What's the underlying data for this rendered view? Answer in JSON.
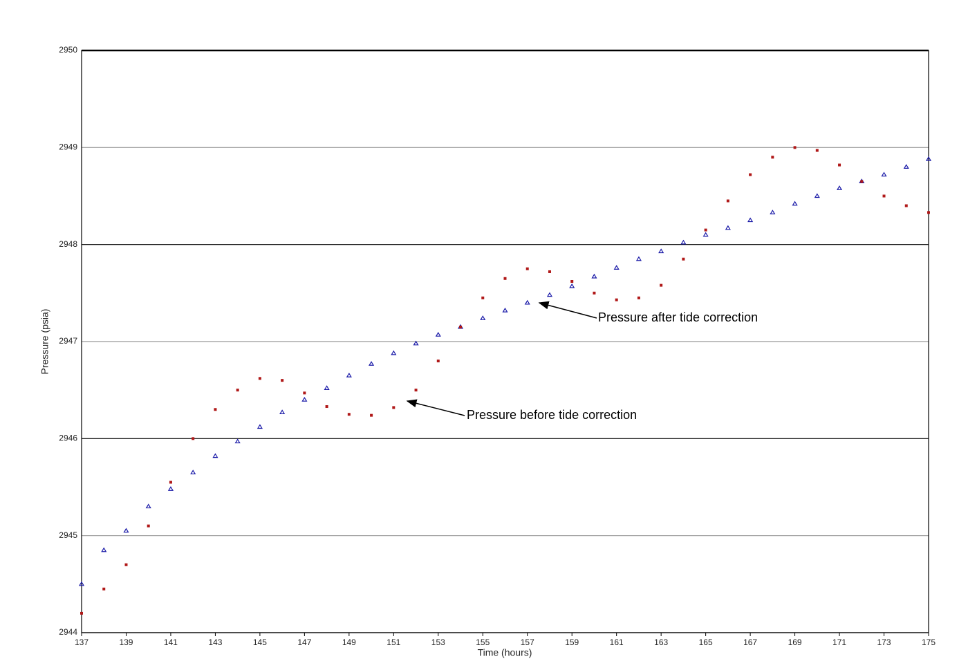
{
  "chart_data": {
    "type": "scatter",
    "x_label": "Time (hours)",
    "y_label": "Pressure (psia)",
    "x": [
      137,
      138,
      139,
      140,
      141,
      142,
      143,
      144,
      145,
      146,
      147,
      148,
      149,
      150,
      151,
      152,
      153,
      154,
      155,
      156,
      157,
      158,
      159,
      160,
      161,
      162,
      163,
      164,
      165,
      166,
      167,
      168,
      169,
      170,
      171,
      172,
      173,
      174,
      175
    ],
    "series": [
      {
        "color": "#1a1aa8",
        "marker": "triangle",
        "values": [
          2944.5,
          2944.85,
          2945.05,
          2945.3,
          2945.48,
          2945.65,
          2945.82,
          2945.97,
          2946.12,
          2946.27,
          2946.4,
          2946.52,
          2946.65,
          2946.77,
          2946.88,
          2946.98,
          2947.07,
          2947.15,
          2947.24,
          2947.32,
          2947.4,
          2947.48,
          2947.57,
          2947.67,
          2947.76,
          2947.85,
          2947.93,
          2948.02,
          2948.1,
          2948.17,
          2948.25,
          2948.33,
          2948.42,
          2948.5,
          2948.58,
          2948.65,
          2948.72,
          2948.8,
          2948.88
        ]
      },
      {
        "color": "#b01818",
        "marker": "square",
        "values": [
          2944.2,
          2944.45,
          2944.7,
          2945.1,
          2945.55,
          2946.0,
          2946.3,
          2946.5,
          2946.62,
          2946.6,
          2946.47,
          2946.33,
          2946.25,
          2946.24,
          2946.32,
          2946.5,
          2946.8,
          2947.15,
          2947.45,
          2947.65,
          2947.75,
          2947.72,
          2947.62,
          2947.5,
          2947.43,
          2947.45,
          2947.58,
          2947.85,
          2948.15,
          2948.45,
          2948.72,
          2948.9,
          2949.0,
          2948.97,
          2948.82,
          2948.65,
          2948.5,
          2948.4,
          2948.33
        ]
      }
    ],
    "annotations": [
      "Pressure after tide correction",
      "Pressure before tide correction"
    ],
    "xlim": [
      137,
      175
    ],
    "xticks": [
      137,
      139,
      141,
      143,
      145,
      147,
      149,
      151,
      153,
      155,
      157,
      159,
      161,
      163,
      165,
      167,
      169,
      171,
      173,
      175
    ],
    "ylim": [
      2944,
      2950
    ],
    "yticks": [
      2944,
      2945,
      2946,
      2947,
      2948,
      2949,
      2950
    ],
    "grid": true
  }
}
